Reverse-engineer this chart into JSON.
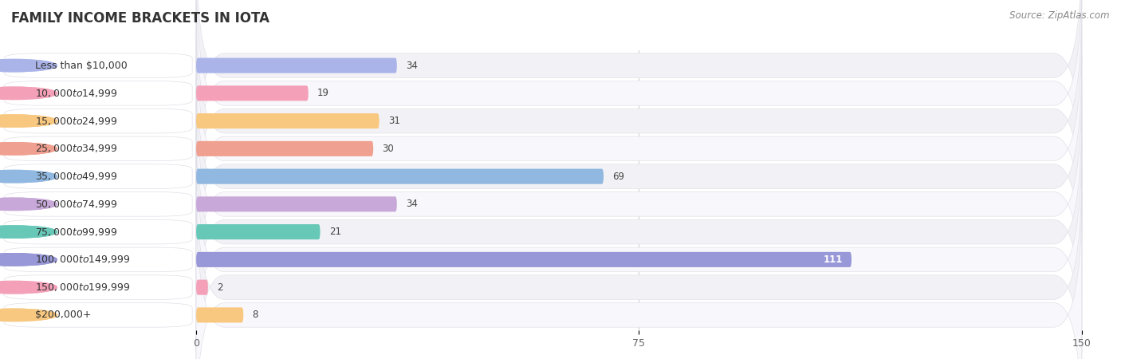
{
  "title": "FAMILY INCOME BRACKETS IN IOTA",
  "source_text": "Source: ZipAtlas.com",
  "categories": [
    "Less than $10,000",
    "$10,000 to $14,999",
    "$15,000 to $24,999",
    "$25,000 to $34,999",
    "$35,000 to $49,999",
    "$50,000 to $74,999",
    "$75,000 to $99,999",
    "$100,000 to $149,999",
    "$150,000 to $199,999",
    "$200,000+"
  ],
  "values": [
    34,
    19,
    31,
    30,
    69,
    34,
    21,
    111,
    2,
    8
  ],
  "bar_colors": [
    "#aab4e8",
    "#f4a0b8",
    "#f8c880",
    "#f0a090",
    "#90b8e0",
    "#c8a8d8",
    "#68c8b8",
    "#9898d8",
    "#f4a0b8",
    "#f8c880"
  ],
  "xlim": [
    0,
    150
  ],
  "xticks": [
    0,
    75,
    150
  ],
  "title_fontsize": 12,
  "label_fontsize": 9,
  "value_fontsize": 8.5,
  "bar_height": 0.55
}
